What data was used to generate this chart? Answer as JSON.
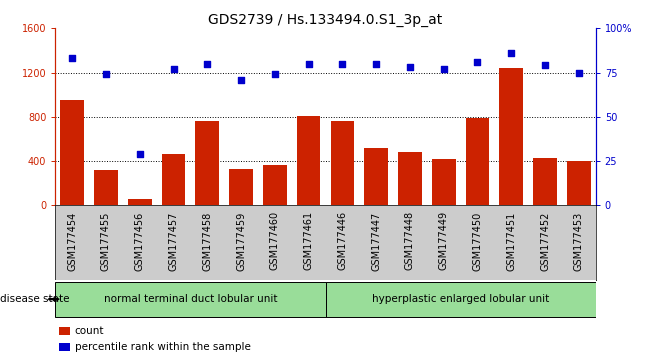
{
  "title": "GDS2739 / Hs.133494.0.S1_3p_at",
  "categories": [
    "GSM177454",
    "GSM177455",
    "GSM177456",
    "GSM177457",
    "GSM177458",
    "GSM177459",
    "GSM177460",
    "GSM177461",
    "GSM177446",
    "GSM177447",
    "GSM177448",
    "GSM177449",
    "GSM177450",
    "GSM177451",
    "GSM177452",
    "GSM177453"
  ],
  "bar_values": [
    950,
    320,
    60,
    460,
    760,
    330,
    360,
    810,
    760,
    520,
    480,
    420,
    790,
    1240,
    430,
    400
  ],
  "dot_values": [
    83,
    74,
    29,
    77,
    80,
    71,
    74,
    80,
    80,
    80,
    78,
    77,
    81,
    86,
    79,
    75
  ],
  "bar_color": "#cc2200",
  "dot_color": "#0000cc",
  "left_ylim": [
    0,
    1600
  ],
  "right_ylim": [
    0,
    100
  ],
  "left_yticks": [
    0,
    400,
    800,
    1200,
    1600
  ],
  "right_yticks": [
    0,
    25,
    50,
    75,
    100
  ],
  "right_yticklabels": [
    "0",
    "25",
    "50",
    "75",
    "100%"
  ],
  "grid_values": [
    400,
    800,
    1200
  ],
  "group1_label": "normal terminal duct lobular unit",
  "group2_label": "hyperplastic enlarged lobular unit",
  "group1_count": 8,
  "group2_count": 8,
  "disease_state_label": "disease state",
  "legend_bar_label": "count",
  "legend_dot_label": "percentile rank within the sample",
  "bg_color": "#ffffff",
  "tick_area_color": "#cccccc",
  "group_color": "#99dd99",
  "title_fontsize": 10,
  "tick_fontsize": 7,
  "legend_fontsize": 7.5
}
